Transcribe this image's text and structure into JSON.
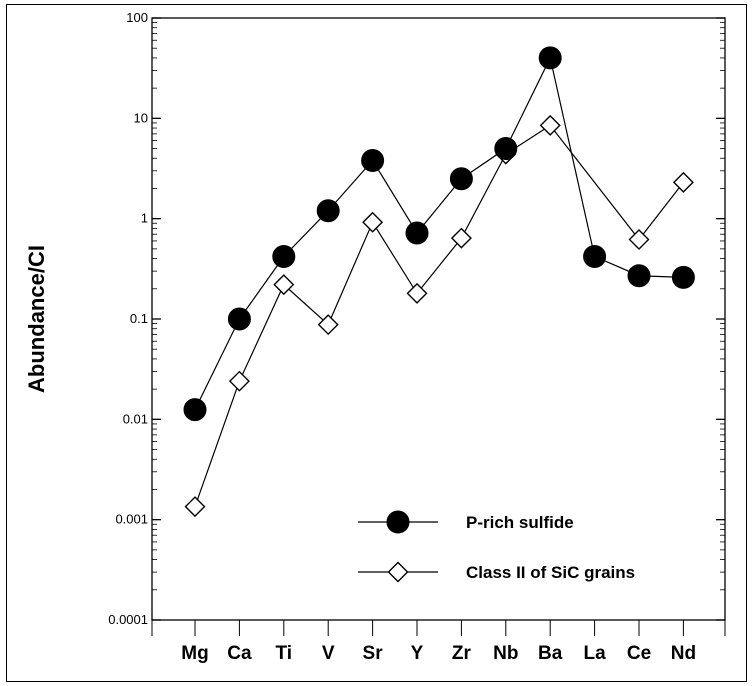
{
  "chart_data": {
    "type": "line",
    "title": "",
    "xlabel": "",
    "ylabel": "Abundance/CI",
    "yscale": "log",
    "ylim": [
      0.0001,
      100
    ],
    "ytick_labels": [
      "0.0001",
      "0.001",
      "0.01",
      "0.1",
      "1",
      "10",
      "100"
    ],
    "categories": [
      "Mg",
      "Ca",
      "Ti",
      "V",
      "Sr",
      "Y",
      "Zr",
      "Nb",
      "Ba",
      "La",
      "Ce",
      "Nd"
    ],
    "legend_position": "bottom-right",
    "grid": false,
    "series": [
      {
        "name": "P-rich sulfide",
        "marker": "filled-circle",
        "color": "#000000",
        "values": [
          0.0125,
          0.1,
          0.42,
          1.2,
          3.8,
          0.72,
          2.5,
          5.0,
          40.0,
          0.42,
          0.27,
          0.26
        ]
      },
      {
        "name": "Class II of SiC grains",
        "marker": "open-diamond",
        "color": "#000000",
        "values": [
          0.00135,
          0.024,
          0.22,
          0.088,
          0.92,
          0.18,
          0.64,
          4.4,
          8.5,
          null,
          0.62,
          2.3
        ]
      }
    ]
  }
}
